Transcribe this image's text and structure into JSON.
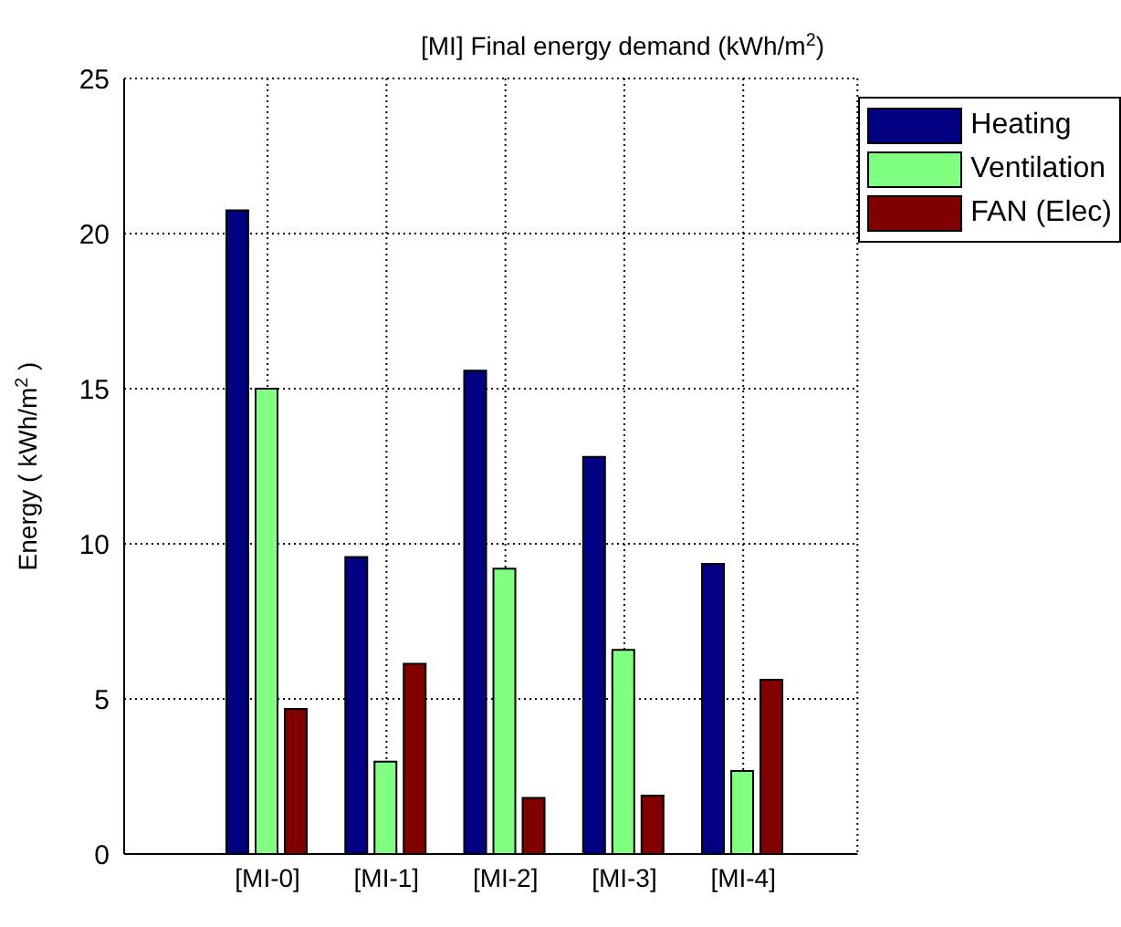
{
  "chart_data": {
    "type": "bar",
    "title": "[MI] Final energy demand (kWh/m$^{2}$)",
    "ylabel": "Energy ( kWh/m$^{2}$ )",
    "categories": [
      "[MI-0]",
      "[MI-1]",
      "[MI-2]",
      "[MI-3]",
      "[MI-4]"
    ],
    "series": [
      {
        "name": "Heating",
        "color": "#000080",
        "values": [
          20.75,
          9.57,
          15.58,
          12.8,
          9.35
        ]
      },
      {
        "name": "Ventilation",
        "color": "#80ff80",
        "values": [
          15.0,
          2.98,
          9.2,
          6.58,
          2.68
        ]
      },
      {
        "name": "FAN (Elec)",
        "color": "#800000",
        "values": [
          4.68,
          6.13,
          1.81,
          1.88,
          5.62
        ]
      }
    ],
    "ylim": [
      0,
      25
    ],
    "yticks": [
      0,
      5,
      10,
      15,
      20,
      25
    ],
    "grid": true,
    "legend": "top right"
  }
}
